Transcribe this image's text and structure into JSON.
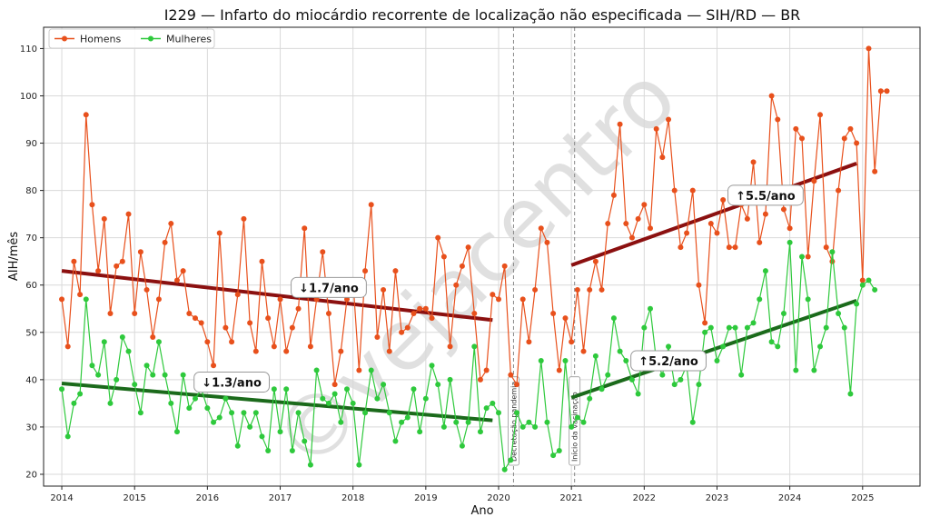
{
  "chart_data": {
    "type": "line",
    "title": "I229 — Infarto do miocárdio recorrente de localização não especificada — SIH/RD — BR",
    "xlabel": "Ano",
    "ylabel": "AIH/mês",
    "xlim": [
      "2013-10-01",
      "2025-10-15"
    ],
    "ylim": [
      17.5,
      114.5
    ],
    "x_ticks": [
      "2014",
      "2015",
      "2016",
      "2017",
      "2018",
      "2019",
      "2020",
      "2021",
      "2022",
      "2023",
      "2024",
      "2025"
    ],
    "y_ticks": [
      20,
      30,
      40,
      50,
      60,
      70,
      80,
      90,
      100,
      110
    ],
    "grid": true,
    "legend_position": "top-left",
    "watermark": "©vejacentro",
    "series": [
      {
        "name": "Homens",
        "color": "#e8501c",
        "start": "2014-01",
        "values": [
          57,
          47,
          65,
          58,
          96,
          77,
          63,
          74,
          54,
          64,
          65,
          75,
          54,
          67,
          59,
          49,
          57,
          69,
          73,
          61,
          63,
          54,
          53,
          52,
          48,
          43,
          71,
          51,
          48,
          58,
          74,
          52,
          46,
          65,
          53,
          47,
          57,
          46,
          51,
          55,
          72,
          47,
          57,
          67,
          54,
          39,
          46,
          57,
          61,
          42,
          63,
          77,
          49,
          59,
          46,
          63,
          50,
          51,
          54,
          55,
          55,
          53,
          70,
          66,
          47,
          60,
          64,
          68,
          54,
          40,
          42,
          58,
          57,
          64,
          41,
          39,
          57,
          48,
          59,
          72,
          69,
          54,
          42,
          53,
          48,
          59,
          46,
          59,
          65,
          59,
          73,
          79,
          94,
          73,
          70,
          74,
          77,
          72,
          93,
          87,
          95,
          80,
          68,
          71,
          80,
          60,
          52,
          73,
          71,
          78,
          68,
          68,
          77,
          74,
          86,
          69,
          75,
          100,
          95,
          76,
          72,
          93,
          91,
          66,
          82,
          96,
          68,
          65,
          80,
          91,
          93,
          90,
          61,
          110,
          84,
          101,
          101
        ]
      },
      {
        "name": "Mulheres",
        "color": "#2ec93c",
        "start": "2014-01",
        "values": [
          38,
          28,
          35,
          37,
          57,
          43,
          41,
          48,
          35,
          40,
          49,
          46,
          39,
          33,
          43,
          41,
          48,
          41,
          35,
          29,
          41,
          34,
          36,
          38,
          34,
          31,
          32,
          36,
          33,
          26,
          33,
          30,
          33,
          28,
          25,
          38,
          29,
          38,
          25,
          33,
          27,
          22,
          42,
          36,
          35,
          37,
          31,
          38,
          35,
          22,
          33,
          42,
          36,
          39,
          33,
          27,
          31,
          32,
          38,
          29,
          36,
          43,
          39,
          30,
          40,
          31,
          26,
          31,
          47,
          29,
          34,
          35,
          33,
          21,
          23,
          33,
          30,
          31,
          30,
          44,
          31,
          24,
          25,
          44,
          30,
          32,
          31,
          36,
          45,
          38,
          41,
          53,
          46,
          44,
          40,
          37,
          51,
          55,
          44,
          41,
          47,
          39,
          40,
          43,
          31,
          39,
          50,
          51,
          44,
          47,
          51,
          51,
          41,
          51,
          52,
          57,
          63,
          48,
          47,
          54,
          69,
          42,
          66,
          57,
          42,
          47,
          51,
          67,
          54,
          51,
          37,
          56,
          60,
          61,
          59
        ]
      }
    ],
    "trends": [
      {
        "series": "Homens",
        "from": [
          "2014-01",
          63.0
        ],
        "to": [
          "2019-12",
          52.6
        ],
        "label": "↓1.7/ano",
        "color": "#8b1010"
      },
      {
        "series": "Mulheres",
        "from": [
          "2014-01",
          39.2
        ],
        "to": [
          "2019-12",
          31.4
        ],
        "label": "↓1.3/ano",
        "color": "#1b6a1b"
      },
      {
        "series": "Homens",
        "from": [
          "2021-01",
          64.2
        ],
        "to": [
          "2024-12",
          85.7
        ],
        "label": "↑5.5/ano",
        "color": "#8b1010"
      },
      {
        "series": "Mulheres",
        "from": [
          "2021-01",
          36.2
        ],
        "to": [
          "2024-12",
          56.7
        ],
        "label": "↑5.2/ano",
        "color": "#1b6a1b"
      }
    ],
    "label_anchors": [
      {
        "label": "↓1.7/ano",
        "at": [
          "2017-09",
          59.5
        ]
      },
      {
        "label": "↓1.3/ano",
        "at": [
          "2016-05",
          39.5
        ]
      },
      {
        "label": "↑5.5/ano",
        "at": [
          "2023-09",
          79.0
        ]
      },
      {
        "label": "↑5.2/ano",
        "at": [
          "2022-05",
          44.0
        ]
      }
    ],
    "events": [
      {
        "date": "2020-03-15",
        "label": "Decretação pandemia"
      },
      {
        "date": "2021-01-17",
        "label": "Início da vacinação"
      }
    ]
  }
}
